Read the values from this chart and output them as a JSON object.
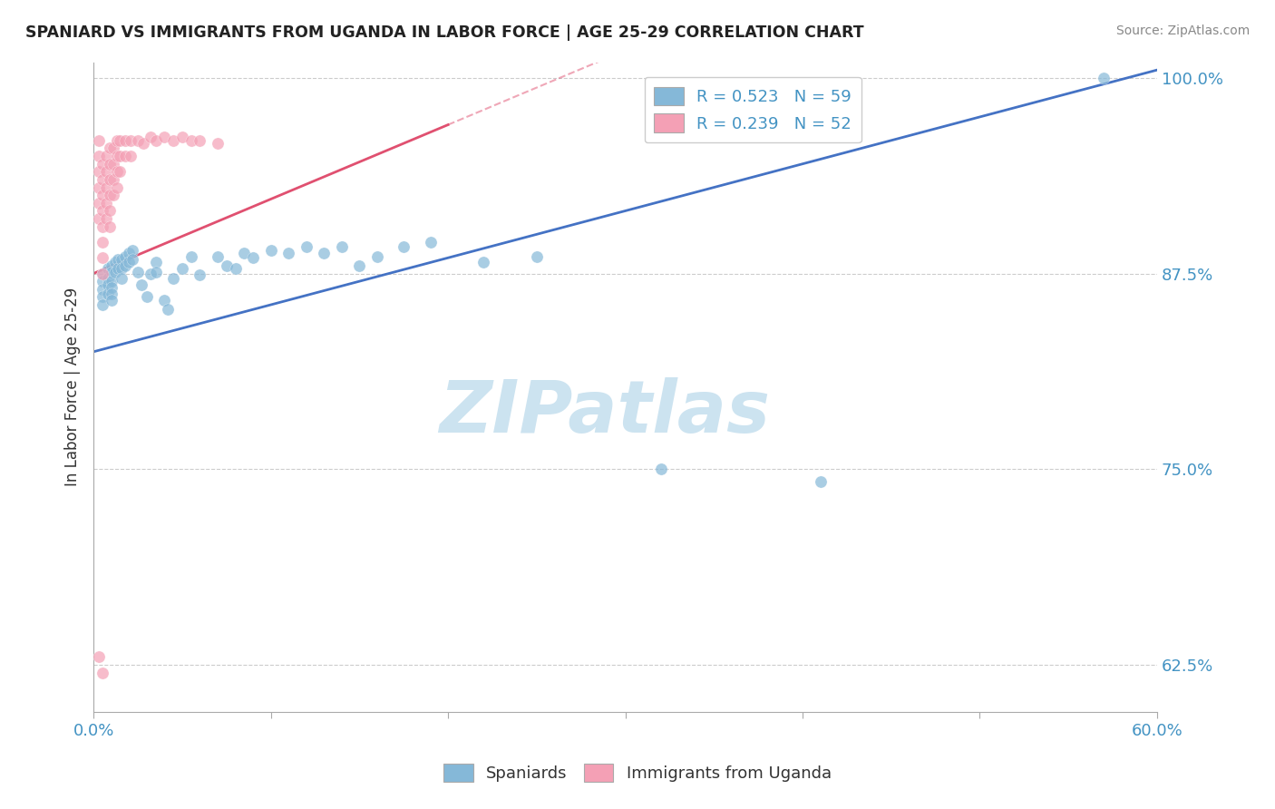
{
  "title": "SPANIARD VS IMMIGRANTS FROM UGANDA IN LABOR FORCE | AGE 25-29 CORRELATION CHART",
  "source": "Source: ZipAtlas.com",
  "ylabel": "In Labor Force | Age 25-29",
  "xlim": [
    0.0,
    0.6
  ],
  "ylim": [
    0.595,
    1.01
  ],
  "xticks": [
    0.0,
    0.1,
    0.2,
    0.3,
    0.4,
    0.5,
    0.6
  ],
  "yticks": [
    0.625,
    0.75,
    0.875,
    1.0
  ],
  "ytick_labels": [
    "62.5%",
    "75.0%",
    "87.5%",
    "100.0%"
  ],
  "xtick_labels": [
    "0.0%",
    "",
    "",
    "",
    "",
    "",
    "60.0%"
  ],
  "blue_R": 0.523,
  "blue_N": 59,
  "pink_R": 0.239,
  "pink_N": 52,
  "blue_color": "#85b8d8",
  "pink_color": "#f4a0b5",
  "blue_line_color": "#4472c4",
  "pink_line_color": "#e05070",
  "watermark_color": "#cce3f0",
  "watermark_text": "ZIPatlas",
  "grid_color": "#cccccc",
  "blue_scatter_x": [
    0.005,
    0.005,
    0.005,
    0.005,
    0.005,
    0.008,
    0.008,
    0.008,
    0.008,
    0.01,
    0.01,
    0.01,
    0.01,
    0.01,
    0.01,
    0.012,
    0.012,
    0.014,
    0.014,
    0.016,
    0.016,
    0.016,
    0.018,
    0.018,
    0.02,
    0.02,
    0.022,
    0.022,
    0.025,
    0.027,
    0.03,
    0.032,
    0.035,
    0.035,
    0.04,
    0.042,
    0.045,
    0.05,
    0.055,
    0.06,
    0.07,
    0.075,
    0.08,
    0.085,
    0.09,
    0.1,
    0.11,
    0.12,
    0.13,
    0.14,
    0.15,
    0.16,
    0.175,
    0.19,
    0.22,
    0.25,
    0.32,
    0.41,
    0.57
  ],
  "blue_scatter_y": [
    0.875,
    0.87,
    0.865,
    0.86,
    0.855,
    0.878,
    0.872,
    0.868,
    0.862,
    0.88,
    0.876,
    0.87,
    0.866,
    0.862,
    0.858,
    0.882,
    0.876,
    0.884,
    0.878,
    0.884,
    0.878,
    0.872,
    0.886,
    0.88,
    0.888,
    0.882,
    0.89,
    0.884,
    0.876,
    0.868,
    0.86,
    0.875,
    0.882,
    0.876,
    0.858,
    0.852,
    0.872,
    0.878,
    0.886,
    0.874,
    0.886,
    0.88,
    0.878,
    0.888,
    0.885,
    0.89,
    0.888,
    0.892,
    0.888,
    0.892,
    0.88,
    0.886,
    0.892,
    0.895,
    0.882,
    0.886,
    0.75,
    0.742,
    1.0
  ],
  "pink_scatter_x": [
    0.003,
    0.003,
    0.003,
    0.003,
    0.003,
    0.003,
    0.005,
    0.005,
    0.005,
    0.005,
    0.005,
    0.005,
    0.005,
    0.005,
    0.007,
    0.007,
    0.007,
    0.007,
    0.007,
    0.009,
    0.009,
    0.009,
    0.009,
    0.009,
    0.009,
    0.011,
    0.011,
    0.011,
    0.011,
    0.013,
    0.013,
    0.013,
    0.013,
    0.015,
    0.015,
    0.015,
    0.018,
    0.018,
    0.021,
    0.021,
    0.025,
    0.028,
    0.032,
    0.035,
    0.04,
    0.045,
    0.05,
    0.055,
    0.06,
    0.07,
    0.003,
    0.005
  ],
  "pink_scatter_y": [
    0.96,
    0.95,
    0.94,
    0.93,
    0.92,
    0.91,
    0.945,
    0.935,
    0.925,
    0.915,
    0.905,
    0.895,
    0.885,
    0.875,
    0.95,
    0.94,
    0.93,
    0.92,
    0.91,
    0.955,
    0.945,
    0.935,
    0.925,
    0.915,
    0.905,
    0.955,
    0.945,
    0.935,
    0.925,
    0.96,
    0.95,
    0.94,
    0.93,
    0.96,
    0.95,
    0.94,
    0.96,
    0.95,
    0.96,
    0.95,
    0.96,
    0.958,
    0.962,
    0.96,
    0.962,
    0.96,
    0.962,
    0.96,
    0.96,
    0.958,
    0.63,
    0.62
  ]
}
